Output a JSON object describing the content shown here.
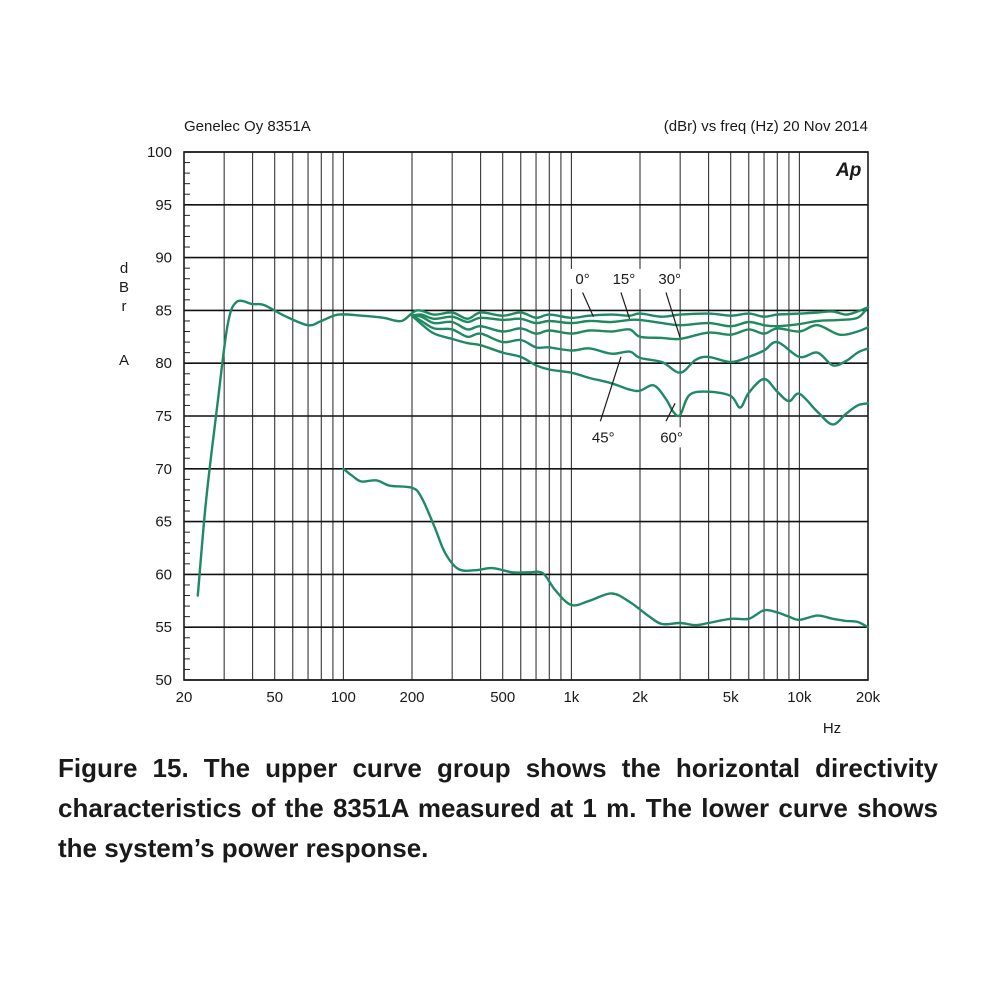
{
  "header": {
    "left": "Genelec Oy 8351A",
    "right": "(dBr) vs freq (Hz) 20 Nov 2014",
    "logo": "Ap"
  },
  "axis": {
    "ylabel_letters": [
      "d",
      "B",
      "r",
      "A"
    ],
    "xlabel": "Hz"
  },
  "caption": "Figure 15. The upper curve group shows the horizontal directivity characteristics of the 8351A measured at 1 m. The lower curve shows the system’s power response.",
  "chart_data": {
    "type": "line",
    "xscale": "log",
    "xlim": [
      20,
      20000
    ],
    "ylim": [
      50,
      100
    ],
    "grid": true,
    "line_color": "#1f8a62",
    "xticks": [
      {
        "v": 20,
        "label": "20"
      },
      {
        "v": 50,
        "label": "50"
      },
      {
        "v": 100,
        "label": "100"
      },
      {
        "v": 200,
        "label": "200"
      },
      {
        "v": 500,
        "label": "500"
      },
      {
        "v": 1000,
        "label": "1k"
      },
      {
        "v": 2000,
        "label": "2k"
      },
      {
        "v": 5000,
        "label": "5k"
      },
      {
        "v": 10000,
        "label": "10k"
      },
      {
        "v": 20000,
        "label": "20k"
      }
    ],
    "yticks": [
      50,
      55,
      60,
      65,
      70,
      75,
      80,
      85,
      90,
      95,
      100
    ],
    "annotations": [
      {
        "label": "0°",
        "text_at": [
          1120,
          87.6
        ],
        "line_from": [
          1120,
          86.7
        ],
        "line_to": [
          1250,
          84.4
        ]
      },
      {
        "label": "15°",
        "text_at": [
          1700,
          87.6
        ],
        "line_from": [
          1650,
          86.7
        ],
        "line_to": [
          1800,
          84.2
        ]
      },
      {
        "label": "30°",
        "text_at": [
          2700,
          87.6
        ],
        "line_from": [
          2600,
          86.7
        ],
        "line_to": [
          3000,
          82.4
        ]
      },
      {
        "label": "45°",
        "text_at": [
          1380,
          72.6
        ],
        "line_from": [
          1340,
          74.5
        ],
        "line_to": [
          1650,
          80.6
        ]
      },
      {
        "label": "60°",
        "text_at": [
          2750,
          72.6
        ],
        "line_from": [
          2600,
          74.5
        ],
        "line_to": [
          2850,
          76.2
        ]
      }
    ],
    "series": [
      {
        "name": "0°",
        "points": [
          [
            23,
            58
          ],
          [
            25,
            67
          ],
          [
            28,
            76
          ],
          [
            31,
            83.5
          ],
          [
            34,
            85.8
          ],
          [
            40,
            85.6
          ],
          [
            45,
            85.5
          ],
          [
            55,
            84.5
          ],
          [
            70,
            83.6
          ],
          [
            80,
            84
          ],
          [
            95,
            84.6
          ],
          [
            120,
            84.5
          ],
          [
            150,
            84.3
          ],
          [
            180,
            84
          ],
          [
            210,
            85
          ],
          [
            250,
            84.6
          ],
          [
            300,
            84.8
          ],
          [
            350,
            84.2
          ],
          [
            400,
            84.8
          ],
          [
            500,
            84.5
          ],
          [
            600,
            84.8
          ],
          [
            700,
            84.3
          ],
          [
            800,
            84.6
          ],
          [
            1000,
            84.3
          ],
          [
            1200,
            84.5
          ],
          [
            1500,
            84.6
          ],
          [
            1800,
            84.5
          ],
          [
            2000,
            84.7
          ],
          [
            2500,
            84.4
          ],
          [
            3000,
            84.6
          ],
          [
            4000,
            84.7
          ],
          [
            5000,
            84.5
          ],
          [
            6000,
            84.7
          ],
          [
            7000,
            84.4
          ],
          [
            8000,
            84.6
          ],
          [
            10000,
            84.7
          ],
          [
            12000,
            84.8
          ],
          [
            14000,
            84.9
          ],
          [
            16000,
            84.6
          ],
          [
            18000,
            84.9
          ],
          [
            20000,
            85.3
          ]
        ]
      },
      {
        "name": "15°",
        "points": [
          [
            200,
            84.5
          ],
          [
            220,
            84.6
          ],
          [
            250,
            84.2
          ],
          [
            300,
            84.4
          ],
          [
            350,
            83.9
          ],
          [
            400,
            84.3
          ],
          [
            500,
            84.1
          ],
          [
            600,
            84.2
          ],
          [
            700,
            83.8
          ],
          [
            800,
            84
          ],
          [
            1000,
            83.8
          ],
          [
            1200,
            84
          ],
          [
            1500,
            83.9
          ],
          [
            1800,
            84.1
          ],
          [
            2000,
            84.1
          ],
          [
            2500,
            83.8
          ],
          [
            3000,
            83.6
          ],
          [
            4000,
            83.8
          ],
          [
            5000,
            83.5
          ],
          [
            6000,
            83.9
          ],
          [
            7000,
            83.6
          ],
          [
            8000,
            83.5
          ],
          [
            10000,
            83.7
          ],
          [
            12000,
            84
          ],
          [
            15000,
            84.1
          ],
          [
            18000,
            84.3
          ],
          [
            20000,
            85.3
          ]
        ]
      },
      {
        "name": "30°",
        "points": [
          [
            200,
            84.5
          ],
          [
            220,
            84.4
          ],
          [
            250,
            83.8
          ],
          [
            300,
            83.9
          ],
          [
            350,
            83.2
          ],
          [
            400,
            83.5
          ],
          [
            500,
            83
          ],
          [
            600,
            83.3
          ],
          [
            700,
            82.8
          ],
          [
            800,
            83.1
          ],
          [
            1000,
            82.8
          ],
          [
            1200,
            83.1
          ],
          [
            1500,
            83
          ],
          [
            1800,
            83.2
          ],
          [
            2000,
            82.5
          ],
          [
            2500,
            82.4
          ],
          [
            3000,
            82.3
          ],
          [
            4000,
            82.9
          ],
          [
            5000,
            82.7
          ],
          [
            6000,
            83.2
          ],
          [
            7000,
            82.8
          ],
          [
            8000,
            83.3
          ],
          [
            10000,
            83
          ],
          [
            12000,
            83.6
          ],
          [
            15000,
            82.7
          ],
          [
            18000,
            83
          ],
          [
            20000,
            83.4
          ]
        ]
      },
      {
        "name": "45°",
        "points": [
          [
            200,
            84.5
          ],
          [
            220,
            84
          ],
          [
            250,
            83.3
          ],
          [
            300,
            83.2
          ],
          [
            350,
            82.5
          ],
          [
            400,
            82.8
          ],
          [
            500,
            82
          ],
          [
            600,
            82.2
          ],
          [
            700,
            81.5
          ],
          [
            800,
            81.5
          ],
          [
            1000,
            81.2
          ],
          [
            1200,
            81.4
          ],
          [
            1500,
            80.9
          ],
          [
            1800,
            81.1
          ],
          [
            2000,
            80.5
          ],
          [
            2500,
            80.1
          ],
          [
            3000,
            79.1
          ],
          [
            3500,
            80.3
          ],
          [
            4000,
            80.6
          ],
          [
            5000,
            80.1
          ],
          [
            6000,
            80.6
          ],
          [
            7000,
            81.2
          ],
          [
            8000,
            82
          ],
          [
            10000,
            80.6
          ],
          [
            12000,
            81
          ],
          [
            14000,
            79.8
          ],
          [
            16000,
            80.2
          ],
          [
            18000,
            81
          ],
          [
            20000,
            81.4
          ]
        ]
      },
      {
        "name": "60°",
        "points": [
          [
            200,
            84.5
          ],
          [
            220,
            83.7
          ],
          [
            250,
            82.8
          ],
          [
            300,
            82.3
          ],
          [
            350,
            81.9
          ],
          [
            400,
            81.7
          ],
          [
            500,
            81
          ],
          [
            600,
            80.6
          ],
          [
            700,
            79.8
          ],
          [
            800,
            79.4
          ],
          [
            1000,
            79.1
          ],
          [
            1200,
            78.6
          ],
          [
            1500,
            78.1
          ],
          [
            1800,
            77.5
          ],
          [
            2000,
            77.4
          ],
          [
            2300,
            77.9
          ],
          [
            2600,
            76.6
          ],
          [
            2800,
            75.4
          ],
          [
            3000,
            75.1
          ],
          [
            3300,
            77
          ],
          [
            4000,
            77.3
          ],
          [
            5000,
            76.9
          ],
          [
            5500,
            75.8
          ],
          [
            6000,
            77.2
          ],
          [
            7000,
            78.5
          ],
          [
            8000,
            77.3
          ],
          [
            9000,
            76.4
          ],
          [
            10000,
            77.1
          ],
          [
            12000,
            75.4
          ],
          [
            14000,
            74.2
          ],
          [
            16000,
            75.2
          ],
          [
            18000,
            76
          ],
          [
            20000,
            76.2
          ]
        ]
      },
      {
        "name": "",
        "points": [
          [
            100,
            70
          ],
          [
            110,
            69.3
          ],
          [
            120,
            68.8
          ],
          [
            140,
            68.9
          ],
          [
            160,
            68.4
          ],
          [
            200,
            68.2
          ],
          [
            220,
            67.3
          ],
          [
            250,
            64.6
          ],
          [
            280,
            62
          ],
          [
            320,
            60.5
          ],
          [
            380,
            60.4
          ],
          [
            450,
            60.6
          ],
          [
            550,
            60.2
          ],
          [
            650,
            60.2
          ],
          [
            750,
            60.1
          ],
          [
            850,
            58.5
          ],
          [
            1000,
            57.1
          ],
          [
            1200,
            57.5
          ],
          [
            1500,
            58.2
          ],
          [
            1800,
            57.4
          ],
          [
            2200,
            56
          ],
          [
            2500,
            55.3
          ],
          [
            3000,
            55.4
          ],
          [
            3500,
            55.2
          ],
          [
            4000,
            55.4
          ],
          [
            5000,
            55.8
          ],
          [
            6000,
            55.8
          ],
          [
            7000,
            56.6
          ],
          [
            8000,
            56.4
          ],
          [
            9000,
            56
          ],
          [
            10000,
            55.7
          ],
          [
            12000,
            56.1
          ],
          [
            14000,
            55.8
          ],
          [
            16000,
            55.6
          ],
          [
            18000,
            55.5
          ],
          [
            20000,
            55
          ]
        ]
      }
    ]
  }
}
